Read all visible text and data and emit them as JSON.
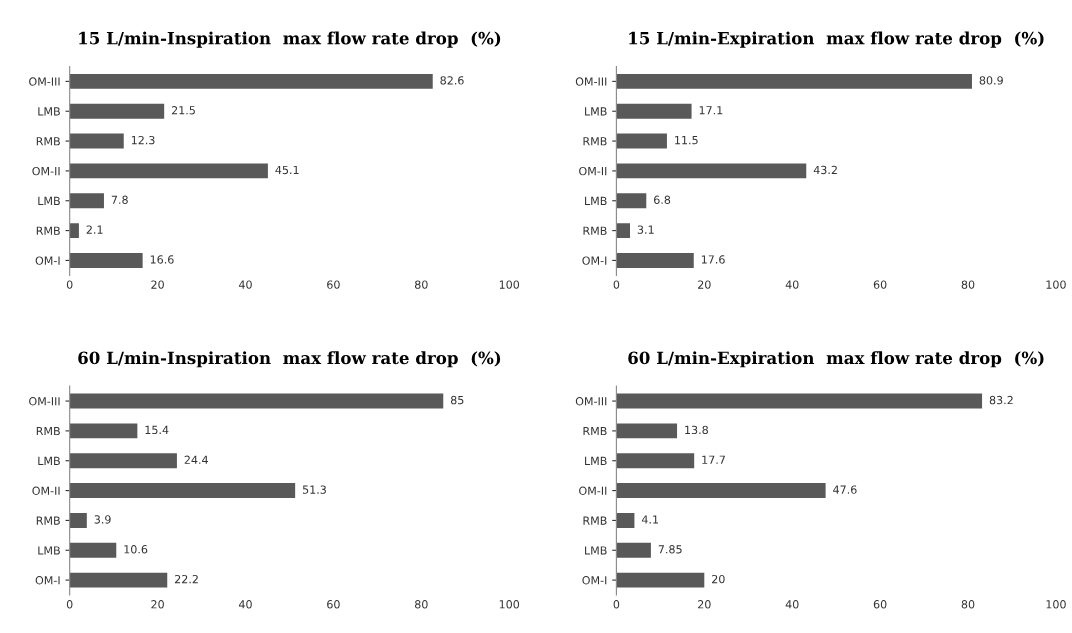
{
  "chart_data": [
    {
      "type": "bar",
      "orientation": "horizontal",
      "title": "15 L/min-Inspiration  max flow rate drop  (%)",
      "categories": [
        "OM-III",
        "LMB",
        "RMB",
        "OM-II",
        "LMB",
        "RMB",
        "OM-I"
      ],
      "values": [
        82.6,
        21.5,
        12.3,
        45.1,
        7.8,
        2.1,
        16.6
      ],
      "color": "#595959",
      "xlim": [
        0,
        100
      ],
      "xticks": [
        0,
        20,
        40,
        60,
        80,
        100
      ],
      "data_labels": true,
      "grid": false,
      "legend": false
    },
    {
      "type": "bar",
      "orientation": "horizontal",
      "title": "15 L/min-Expiration  max flow rate drop  (%)",
      "categories": [
        "OM-III",
        "LMB",
        "RMB",
        "OM-II",
        "LMB",
        "RMB",
        "OM-I"
      ],
      "values": [
        80.9,
        17.1,
        11.5,
        43.2,
        6.8,
        3.1,
        17.6
      ],
      "color": "#595959",
      "xlim": [
        0,
        100
      ],
      "xticks": [
        0,
        20,
        40,
        60,
        80,
        100
      ],
      "data_labels": true,
      "grid": false,
      "legend": false
    },
    {
      "type": "bar",
      "orientation": "horizontal",
      "title": "60 L/min-Inspiration  max flow rate drop  (%)",
      "categories": [
        "OM-III",
        "RMB",
        "LMB",
        "OM-II",
        "RMB",
        "LMB",
        "OM-I"
      ],
      "values": [
        85,
        15.4,
        24.4,
        51.3,
        3.9,
        10.6,
        22.2
      ],
      "color": "#595959",
      "xlim": [
        0,
        100
      ],
      "xticks": [
        0,
        20,
        40,
        60,
        80,
        100
      ],
      "data_labels": true,
      "grid": false,
      "legend": false
    },
    {
      "type": "bar",
      "orientation": "horizontal",
      "title": "60 L/min-Expiration  max flow rate drop  (%)",
      "categories": [
        "OM-III",
        "RMB",
        "LMB",
        "OM-II",
        "RMB",
        "LMB",
        "OM-I"
      ],
      "values": [
        83.2,
        13.8,
        17.7,
        47.6,
        4.1,
        7.85,
        20
      ],
      "color": "#595959",
      "xlim": [
        0,
        100
      ],
      "xticks": [
        0,
        20,
        40,
        60,
        80,
        100
      ],
      "data_labels": true,
      "grid": false,
      "legend": false
    }
  ]
}
